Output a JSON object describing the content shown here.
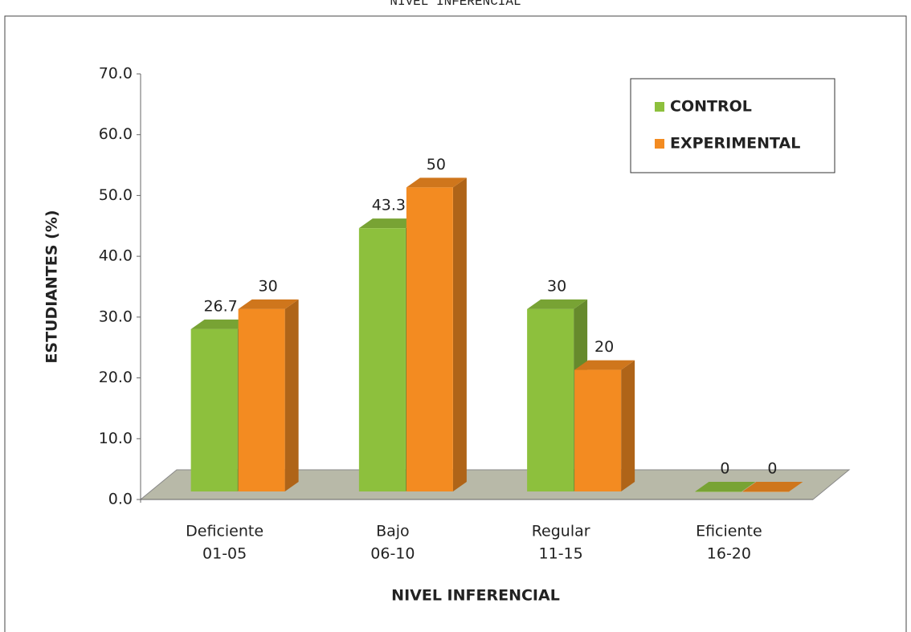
{
  "chart_data": {
    "type": "bar3d",
    "title": "NIVEL INFERENCIAL",
    "categories": [
      [
        "Deficiente",
        "01-05"
      ],
      [
        "Bajo",
        "06-10"
      ],
      [
        "Regular",
        "11-15"
      ],
      [
        "Eficiente",
        "16-20"
      ]
    ],
    "series": [
      {
        "name": "CONTROL",
        "color": "#8dc03d",
        "values": [
          26.7,
          43.3,
          30,
          0
        ]
      },
      {
        "name": "EXPERIMENTAL",
        "color": "#f38b21",
        "values": [
          30,
          50,
          20,
          0
        ]
      }
    ],
    "ylim": [
      0,
      70
    ],
    "yticks": [
      {
        "value": 0,
        "label": "0.0"
      },
      {
        "value": 10,
        "label": "10.0"
      },
      {
        "value": 20,
        "label": "20.0"
      },
      {
        "value": 30,
        "label": "30.0"
      },
      {
        "value": 40,
        "label": "40.0"
      },
      {
        "value": 50,
        "label": "50.0"
      },
      {
        "value": 60,
        "label": "60.0"
      },
      {
        "value": 70,
        "label": "70.0"
      }
    ],
    "xlabel": "NIVEL INFERENCIAL",
    "ylabel": "ESTUDIANTES  (%)",
    "legend": "top-right"
  }
}
